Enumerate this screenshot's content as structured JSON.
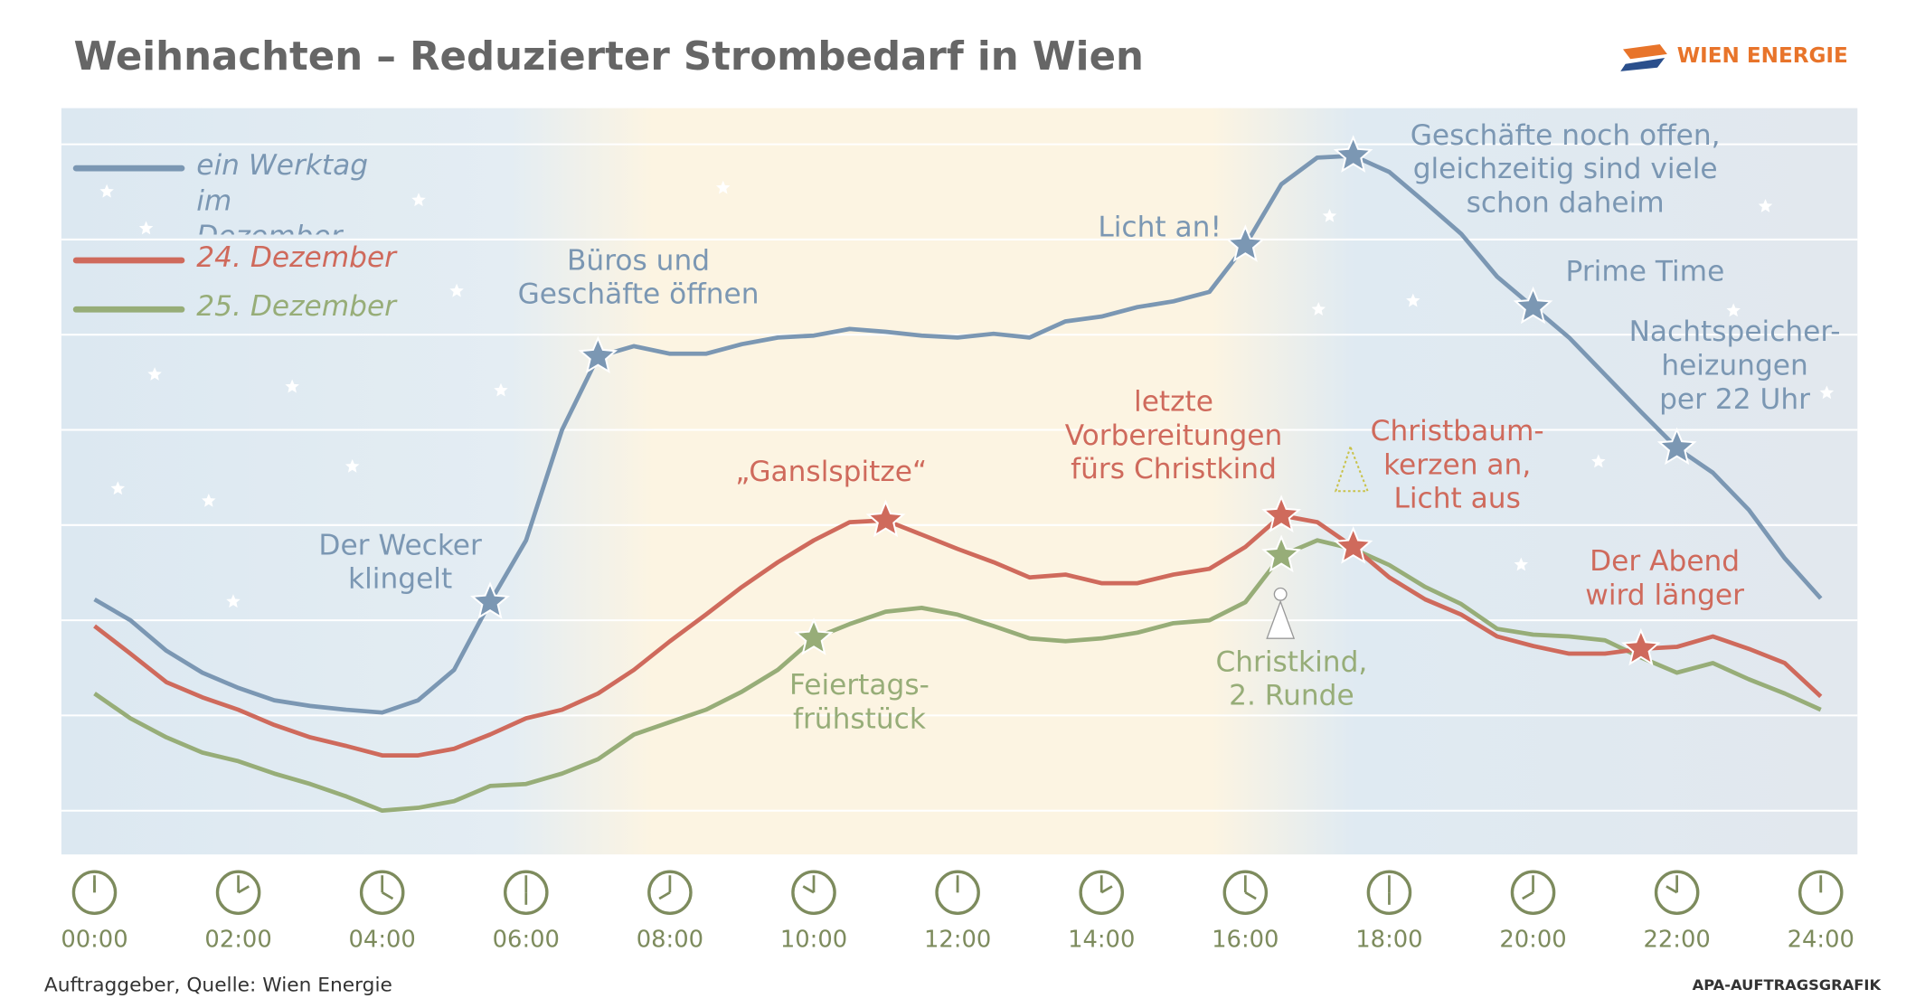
{
  "chart_data": {
    "type": "line",
    "title": "Weihnachten – Reduzierter Strombedarf in Wien",
    "logo": "WIEN ENERGIE",
    "source": "Auftraggeber, Quelle: Wien Energie",
    "credit": "APA-AUFTRAGSGRAFIK",
    "x": [
      0,
      0.5,
      1,
      1.5,
      2,
      2.5,
      3,
      3.5,
      4,
      4.5,
      5,
      5.5,
      6,
      6.5,
      7,
      7.5,
      8,
      8.5,
      9,
      9.5,
      10,
      10.5,
      11,
      11.5,
      12,
      12.5,
      13,
      13.5,
      14,
      14.5,
      15,
      15.5,
      16,
      16.5,
      17,
      17.5,
      18,
      18.5,
      19,
      19.5,
      20,
      20.5,
      21,
      21.5,
      22,
      22.5,
      23,
      23.5,
      24
    ],
    "xlim": [
      -0.46,
      24.51
    ],
    "xticks": [
      {
        "value": 0,
        "label": "00:00"
      },
      {
        "value": 2,
        "label": "02:00"
      },
      {
        "value": 4,
        "label": "04:00"
      },
      {
        "value": 6,
        "label": "06:00"
      },
      {
        "value": 8,
        "label": "08:00"
      },
      {
        "value": 10,
        "label": "10:00"
      },
      {
        "value": 12,
        "label": "12:00"
      },
      {
        "value": 14,
        "label": "14:00"
      },
      {
        "value": 16,
        "label": "16:00"
      },
      {
        "value": 18,
        "label": "18:00"
      },
      {
        "value": 20,
        "label": "20:00"
      },
      {
        "value": 22,
        "label": "22:00"
      },
      {
        "value": 24,
        "label": "24:00"
      }
    ],
    "ylim": [
      -4.6,
      73.8
    ],
    "yticks": [
      0,
      10,
      20,
      30,
      40,
      50,
      60,
      70
    ],
    "grid": true,
    "series": [
      {
        "name": "ein Werktag im Dezember",
        "color": "#7b97b3",
        "values": [
          22.2,
          20,
          16.8,
          14.5,
          12.9,
          11.6,
          11,
          10.6,
          10.3,
          11.6,
          14.8,
          21.9,
          28.4,
          40,
          47.7,
          48.8,
          48,
          48,
          49,
          49.7,
          49.9,
          50.6,
          50.3,
          49.9,
          49.7,
          50.1,
          49.7,
          51.4,
          51.9,
          52.9,
          53.5,
          54.5,
          59.4,
          65.8,
          68.6,
          68.8,
          67.1,
          63.9,
          60.6,
          56.1,
          52.9,
          49.7,
          45.8,
          41.9,
          38.1,
          35.5,
          31.6,
          26.5,
          22.3
        ]
      },
      {
        "name": "24. Dezember",
        "color": "#cf6a5c",
        "values": [
          19.4,
          16.5,
          13.5,
          11.9,
          10.6,
          9,
          7.7,
          6.8,
          5.8,
          5.8,
          6.5,
          8,
          9.7,
          10.6,
          12.3,
          14.8,
          17.8,
          20.6,
          23.5,
          26.1,
          28.4,
          30.3,
          30.5,
          29,
          27.5,
          26.1,
          24.5,
          24.8,
          23.9,
          23.9,
          24.8,
          25.4,
          27.7,
          31,
          30.3,
          27.7,
          24.5,
          22.2,
          20.6,
          18.3,
          17.3,
          16.5,
          16.5,
          17,
          17.2,
          18.3,
          17,
          15.5,
          12
        ]
      },
      {
        "name": "25. Dezember",
        "color": "#97ad78",
        "values": [
          12.3,
          9.7,
          7.7,
          6.1,
          5.2,
          3.9,
          2.8,
          1.5,
          0,
          0.3,
          1,
          2.6,
          2.8,
          3.9,
          5.4,
          8,
          9.3,
          10.6,
          12.5,
          14.8,
          18.1,
          19.6,
          20.9,
          21.3,
          20.6,
          19.4,
          18.1,
          17.8,
          18.1,
          18.7,
          19.7,
          20,
          21.9,
          26.8,
          28.4,
          27.5,
          25.8,
          23.5,
          21.7,
          19.1,
          18.5,
          18.3,
          17.9,
          16.1,
          14.5,
          15.5,
          13.8,
          12.3,
          10.6
        ]
      }
    ],
    "annotations": [
      {
        "lines": [
          "Der Wecker",
          "klingelt"
        ]
      },
      {
        "lines": [
          "Büros und",
          "Geschäfte öffnen"
        ]
      },
      {
        "lines": [
          "Licht an!"
        ]
      },
      {
        "lines": [
          "Geschäfte noch offen,",
          "gleichzeitig sind viele",
          "schon daheim"
        ]
      },
      {
        "lines": [
          "Prime Time"
        ]
      },
      {
        "lines": [
          "Nachtspeicher-",
          "heizungen",
          "per 22 Uhr"
        ]
      },
      {
        "lines": [
          "„Ganslspitze“"
        ]
      },
      {
        "lines": [
          "letzte",
          "Vorbereitungen",
          "fürs Christkind"
        ]
      },
      {
        "lines": [
          "Christbaum-",
          "kerzen an,",
          "Licht aus"
        ]
      },
      {
        "lines": [
          "Der Abend",
          "wird länger"
        ]
      },
      {
        "lines": [
          "Feiertags-",
          "frühstück"
        ]
      },
      {
        "lines": [
          "Christkind,",
          "2. Runde"
        ]
      }
    ]
  }
}
